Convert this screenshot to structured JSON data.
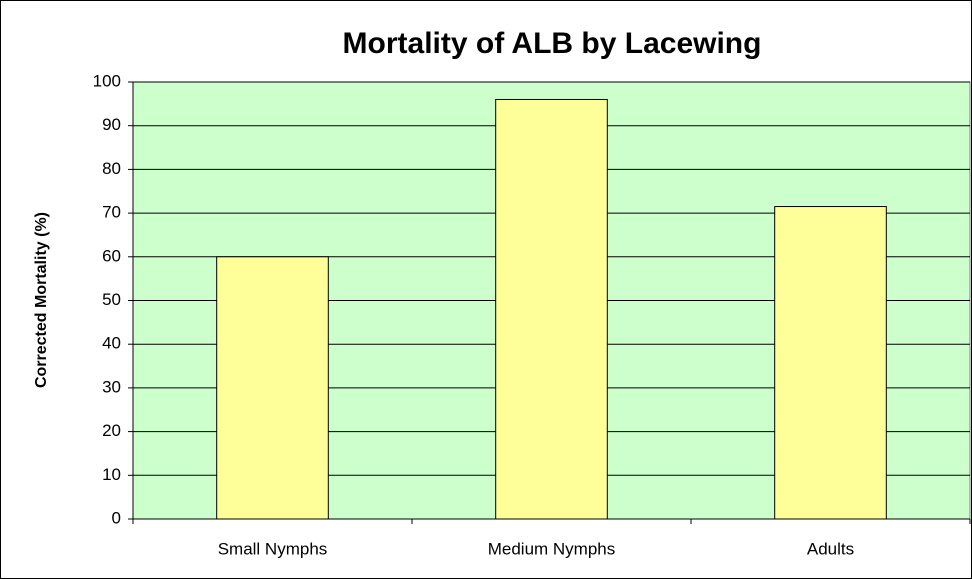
{
  "chart_data": {
    "type": "bar",
    "title": "Mortality of ALB by Lacewing",
    "y_label": "Corrected Mortality (%)",
    "categories": [
      "Small Nymphs",
      "Medium Nymphs",
      "Adults"
    ],
    "values": [
      60,
      96,
      71.5
    ],
    "color": "#ffff99",
    "ylim": [
      0,
      100
    ],
    "yticks": [
      0,
      10,
      20,
      30,
      40,
      50,
      60,
      70,
      80,
      90,
      100
    ],
    "grid": true
  }
}
